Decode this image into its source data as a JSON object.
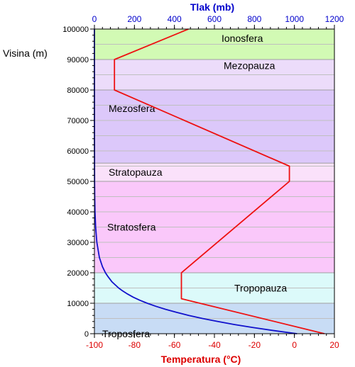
{
  "chart_data": {
    "type": "line",
    "title": "",
    "ylabel": "Visina (m)",
    "xlabel_bottom": "Temperatura (°C)",
    "xlabel_top": "Tlak (mb)",
    "ylim": [
      0,
      100000
    ],
    "xlim_temperature": [
      -100,
      20
    ],
    "xlim_pressure": [
      0,
      1200
    ],
    "y_ticks": [
      0,
      10000,
      20000,
      30000,
      40000,
      50000,
      60000,
      70000,
      80000,
      90000,
      100000
    ],
    "y_tick_labels": [
      "0",
      "10000",
      "20000",
      "30000",
      "40000",
      "50000",
      "60000",
      "70000",
      "80000",
      "90000",
      "100000"
    ],
    "x_bottom_ticks": [
      -100,
      -80,
      -60,
      -40,
      -20,
      0,
      20
    ],
    "x_bottom_tick_labels": [
      "-100",
      "-80",
      "-60",
      "-40",
      "-20",
      "0",
      "20"
    ],
    "x_top_ticks": [
      0,
      200,
      400,
      600,
      800,
      1000,
      1200
    ],
    "x_top_tick_labels": [
      "0",
      "200",
      "400",
      "600",
      "800",
      "1000",
      "1200"
    ],
    "colors": {
      "temperature": "#ee1111",
      "pressure": "#1111cc",
      "bottom_axis_label": "#dd0000",
      "top_axis_label": "#0000cc"
    },
    "layers": [
      {
        "name": "Troposfera",
        "from": 0,
        "to": 10000,
        "color": "#c8dcf5"
      },
      {
        "name": "Tropopauza",
        "from": 10000,
        "to": 20000,
        "color": "#dcfafa"
      },
      {
        "name": "Stratosfera",
        "from": 20000,
        "to": 50000,
        "color": "#fac8fa"
      },
      {
        "name": "Stratopauza",
        "from": 50000,
        "to": 56000,
        "color": "#fae1fa"
      },
      {
        "name": "Mezosfera",
        "from": 56000,
        "to": 80000,
        "color": "#dcc8fa"
      },
      {
        "name": "Mezopauza",
        "from": 80000,
        "to": 90000,
        "color": "#ecdcfa"
      },
      {
        "name": "Ionosfera",
        "from": 90000,
        "to": 100000,
        "color": "#d2fab4"
      }
    ],
    "series": [
      {
        "axis": "temperature",
        "points": [
          [
            15,
            0
          ],
          [
            -56.5,
            11500
          ],
          [
            -56.5,
            20000
          ],
          [
            -2.5,
            50000
          ],
          [
            -2.5,
            55000
          ],
          [
            -90,
            80000
          ],
          [
            -90,
            90000
          ],
          [
            -53,
            100000
          ]
        ]
      },
      {
        "axis": "pressure",
        "points": [
          [
            1013,
            0
          ],
          [
            899,
            1000
          ],
          [
            795,
            2000
          ],
          [
            701,
            3000
          ],
          [
            617,
            4000
          ],
          [
            540,
            5000
          ],
          [
            472,
            6000
          ],
          [
            411,
            7000
          ],
          [
            356,
            8000
          ],
          [
            307,
            9000
          ],
          [
            264,
            10000
          ],
          [
            226,
            11000
          ],
          [
            194,
            12000
          ],
          [
            166,
            13000
          ],
          [
            142,
            14000
          ],
          [
            121,
            15000
          ],
          [
            88,
            17000
          ],
          [
            65,
            19000
          ],
          [
            55,
            20000
          ],
          [
            40,
            22000
          ],
          [
            25,
            25000
          ],
          [
            12,
            30000
          ],
          [
            6,
            35000
          ],
          [
            3,
            40000
          ],
          [
            1.5,
            45000
          ],
          [
            0.8,
            50000
          ],
          [
            0.2,
            60000
          ],
          [
            0.05,
            70000
          ],
          [
            0.01,
            80000
          ],
          [
            0.003,
            90000
          ],
          [
            0.0003,
            100000
          ]
        ]
      }
    ]
  }
}
